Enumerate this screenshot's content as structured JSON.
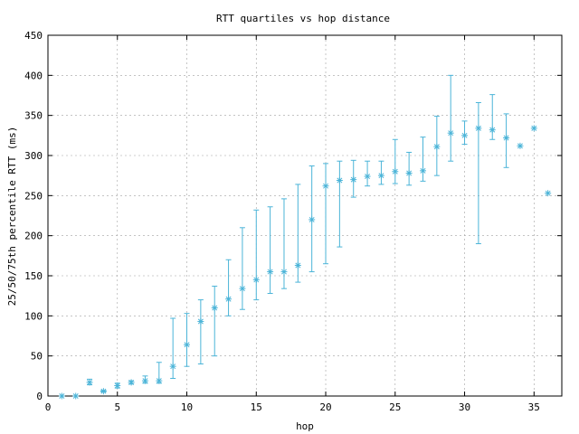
{
  "chart_data": {
    "type": "scatter",
    "title": "RTT quartiles vs hop distance",
    "xlabel": "hop",
    "ylabel": "25/50/75th percentile RTT (ms)",
    "xlim": [
      0,
      37
    ],
    "ylim": [
      0,
      450
    ],
    "xticks": [
      0,
      5,
      10,
      15,
      20,
      25,
      30,
      35
    ],
    "yticks": [
      0,
      50,
      100,
      150,
      200,
      250,
      300,
      350,
      400,
      450
    ],
    "grid": true,
    "legend": "none",
    "color": "#4bb4d8",
    "series": [
      {
        "points": [
          {
            "x": 1,
            "p25": 0,
            "p50": 0,
            "p75": 0
          },
          {
            "x": 2,
            "p25": 0,
            "p50": 0,
            "p75": 0
          },
          {
            "x": 3,
            "p25": 14,
            "p50": 17,
            "p75": 21
          },
          {
            "x": 4,
            "p25": 5,
            "p50": 6,
            "p75": 7
          },
          {
            "x": 5,
            "p25": 10,
            "p50": 13,
            "p75": 16
          },
          {
            "x": 6,
            "p25": 15,
            "p50": 17,
            "p75": 19
          },
          {
            "x": 7,
            "p25": 16,
            "p50": 19,
            "p75": 25
          },
          {
            "x": 8,
            "p25": 16,
            "p50": 19,
            "p75": 42
          },
          {
            "x": 9,
            "p25": 22,
            "p50": 37,
            "p75": 97
          },
          {
            "x": 10,
            "p25": 37,
            "p50": 64,
            "p75": 103
          },
          {
            "x": 11,
            "p25": 40,
            "p50": 93,
            "p75": 120
          },
          {
            "x": 12,
            "p25": 50,
            "p50": 110,
            "p75": 137
          },
          {
            "x": 13,
            "p25": 100,
            "p50": 121,
            "p75": 170
          },
          {
            "x": 14,
            "p25": 108,
            "p50": 134,
            "p75": 210
          },
          {
            "x": 15,
            "p25": 120,
            "p50": 145,
            "p75": 232
          },
          {
            "x": 16,
            "p25": 128,
            "p50": 155,
            "p75": 236
          },
          {
            "x": 17,
            "p25": 134,
            "p50": 155,
            "p75": 246
          },
          {
            "x": 18,
            "p25": 142,
            "p50": 163,
            "p75": 264
          },
          {
            "x": 19,
            "p25": 155,
            "p50": 220,
            "p75": 287
          },
          {
            "x": 20,
            "p25": 165,
            "p50": 262,
            "p75": 290
          },
          {
            "x": 21,
            "p25": 186,
            "p50": 269,
            "p75": 293
          },
          {
            "x": 22,
            "p25": 248,
            "p50": 270,
            "p75": 294
          },
          {
            "x": 23,
            "p25": 262,
            "p50": 274,
            "p75": 293
          },
          {
            "x": 24,
            "p25": 264,
            "p50": 275,
            "p75": 293
          },
          {
            "x": 25,
            "p25": 265,
            "p50": 280,
            "p75": 320
          },
          {
            "x": 26,
            "p25": 263,
            "p50": 278,
            "p75": 304
          },
          {
            "x": 27,
            "p25": 268,
            "p50": 281,
            "p75": 323
          },
          {
            "x": 28,
            "p25": 275,
            "p50": 311,
            "p75": 349
          },
          {
            "x": 29,
            "p25": 293,
            "p50": 328,
            "p75": 400
          },
          {
            "x": 30,
            "p25": 314,
            "p50": 325,
            "p75": 343
          },
          {
            "x": 31,
            "p25": 190,
            "p50": 334,
            "p75": 366
          },
          {
            "x": 32,
            "p25": 320,
            "p50": 332,
            "p75": 376
          },
          {
            "x": 33,
            "p25": 285,
            "p50": 322,
            "p75": 352
          },
          {
            "x": 34,
            "p25": 312,
            "p50": 312,
            "p75": 312
          },
          {
            "x": 35,
            "p25": 334,
            "p50": 334,
            "p75": 334
          },
          {
            "x": 36,
            "p25": 253,
            "p50": 253,
            "p75": 253
          }
        ]
      }
    ]
  }
}
